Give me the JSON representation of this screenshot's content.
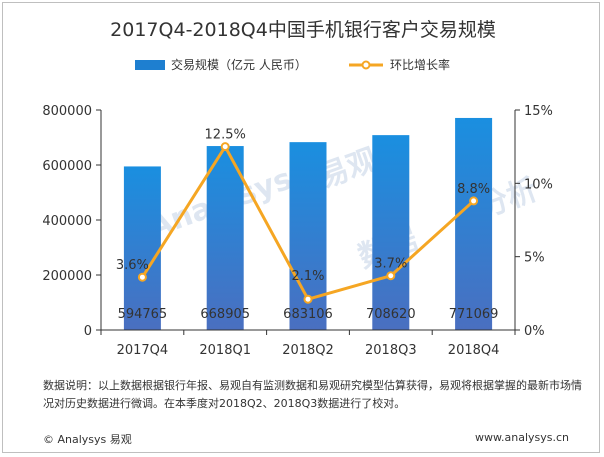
{
  "chart_data": {
    "type": "bar",
    "title": "2017Q4-2018Q4中国手机银行客户交易规模",
    "categories": [
      "2017Q4",
      "2018Q1",
      "2018Q2",
      "2018Q3",
      "2018Q4"
    ],
    "series": [
      {
        "name": "交易规模（亿元 人民币）",
        "type": "bar",
        "axis": "left",
        "color": "#1e7fd0",
        "values": [
          594765,
          668905,
          683106,
          708620,
          771069
        ],
        "labels": [
          "594765",
          "668905",
          "683106",
          "708620",
          "771069"
        ]
      },
      {
        "name": "环比增长率",
        "type": "line",
        "axis": "right",
        "color": "#f5a623",
        "values": [
          3.6,
          12.5,
          2.1,
          3.7,
          8.8
        ],
        "labels": [
          "3.6%",
          "12.5%",
          "2.1%",
          "3.7%",
          "8.8%"
        ]
      }
    ],
    "ylim": [
      0,
      800000
    ],
    "yticks": [
      "0",
      "200000",
      "400000",
      "600000",
      "800000"
    ],
    "y2lim": [
      0,
      15
    ],
    "y2ticks": [
      "0%",
      "5%",
      "10%",
      "15%"
    ],
    "legend_position": "top",
    "grid": false
  },
  "watermark": [
    "Analysys",
    "易观",
    "数据",
    "分析"
  ],
  "note": "数据说明：以上数据根据银行年报、易观自有监测数据和易观研究模型估算获得，易观将根据掌握的最新市场情况对历史数据进行微调。在本季度对2018Q2、2018Q3数据进行了校对。",
  "footer": {
    "left": "© Analysys 易观",
    "right": "www.analysys.cn"
  }
}
